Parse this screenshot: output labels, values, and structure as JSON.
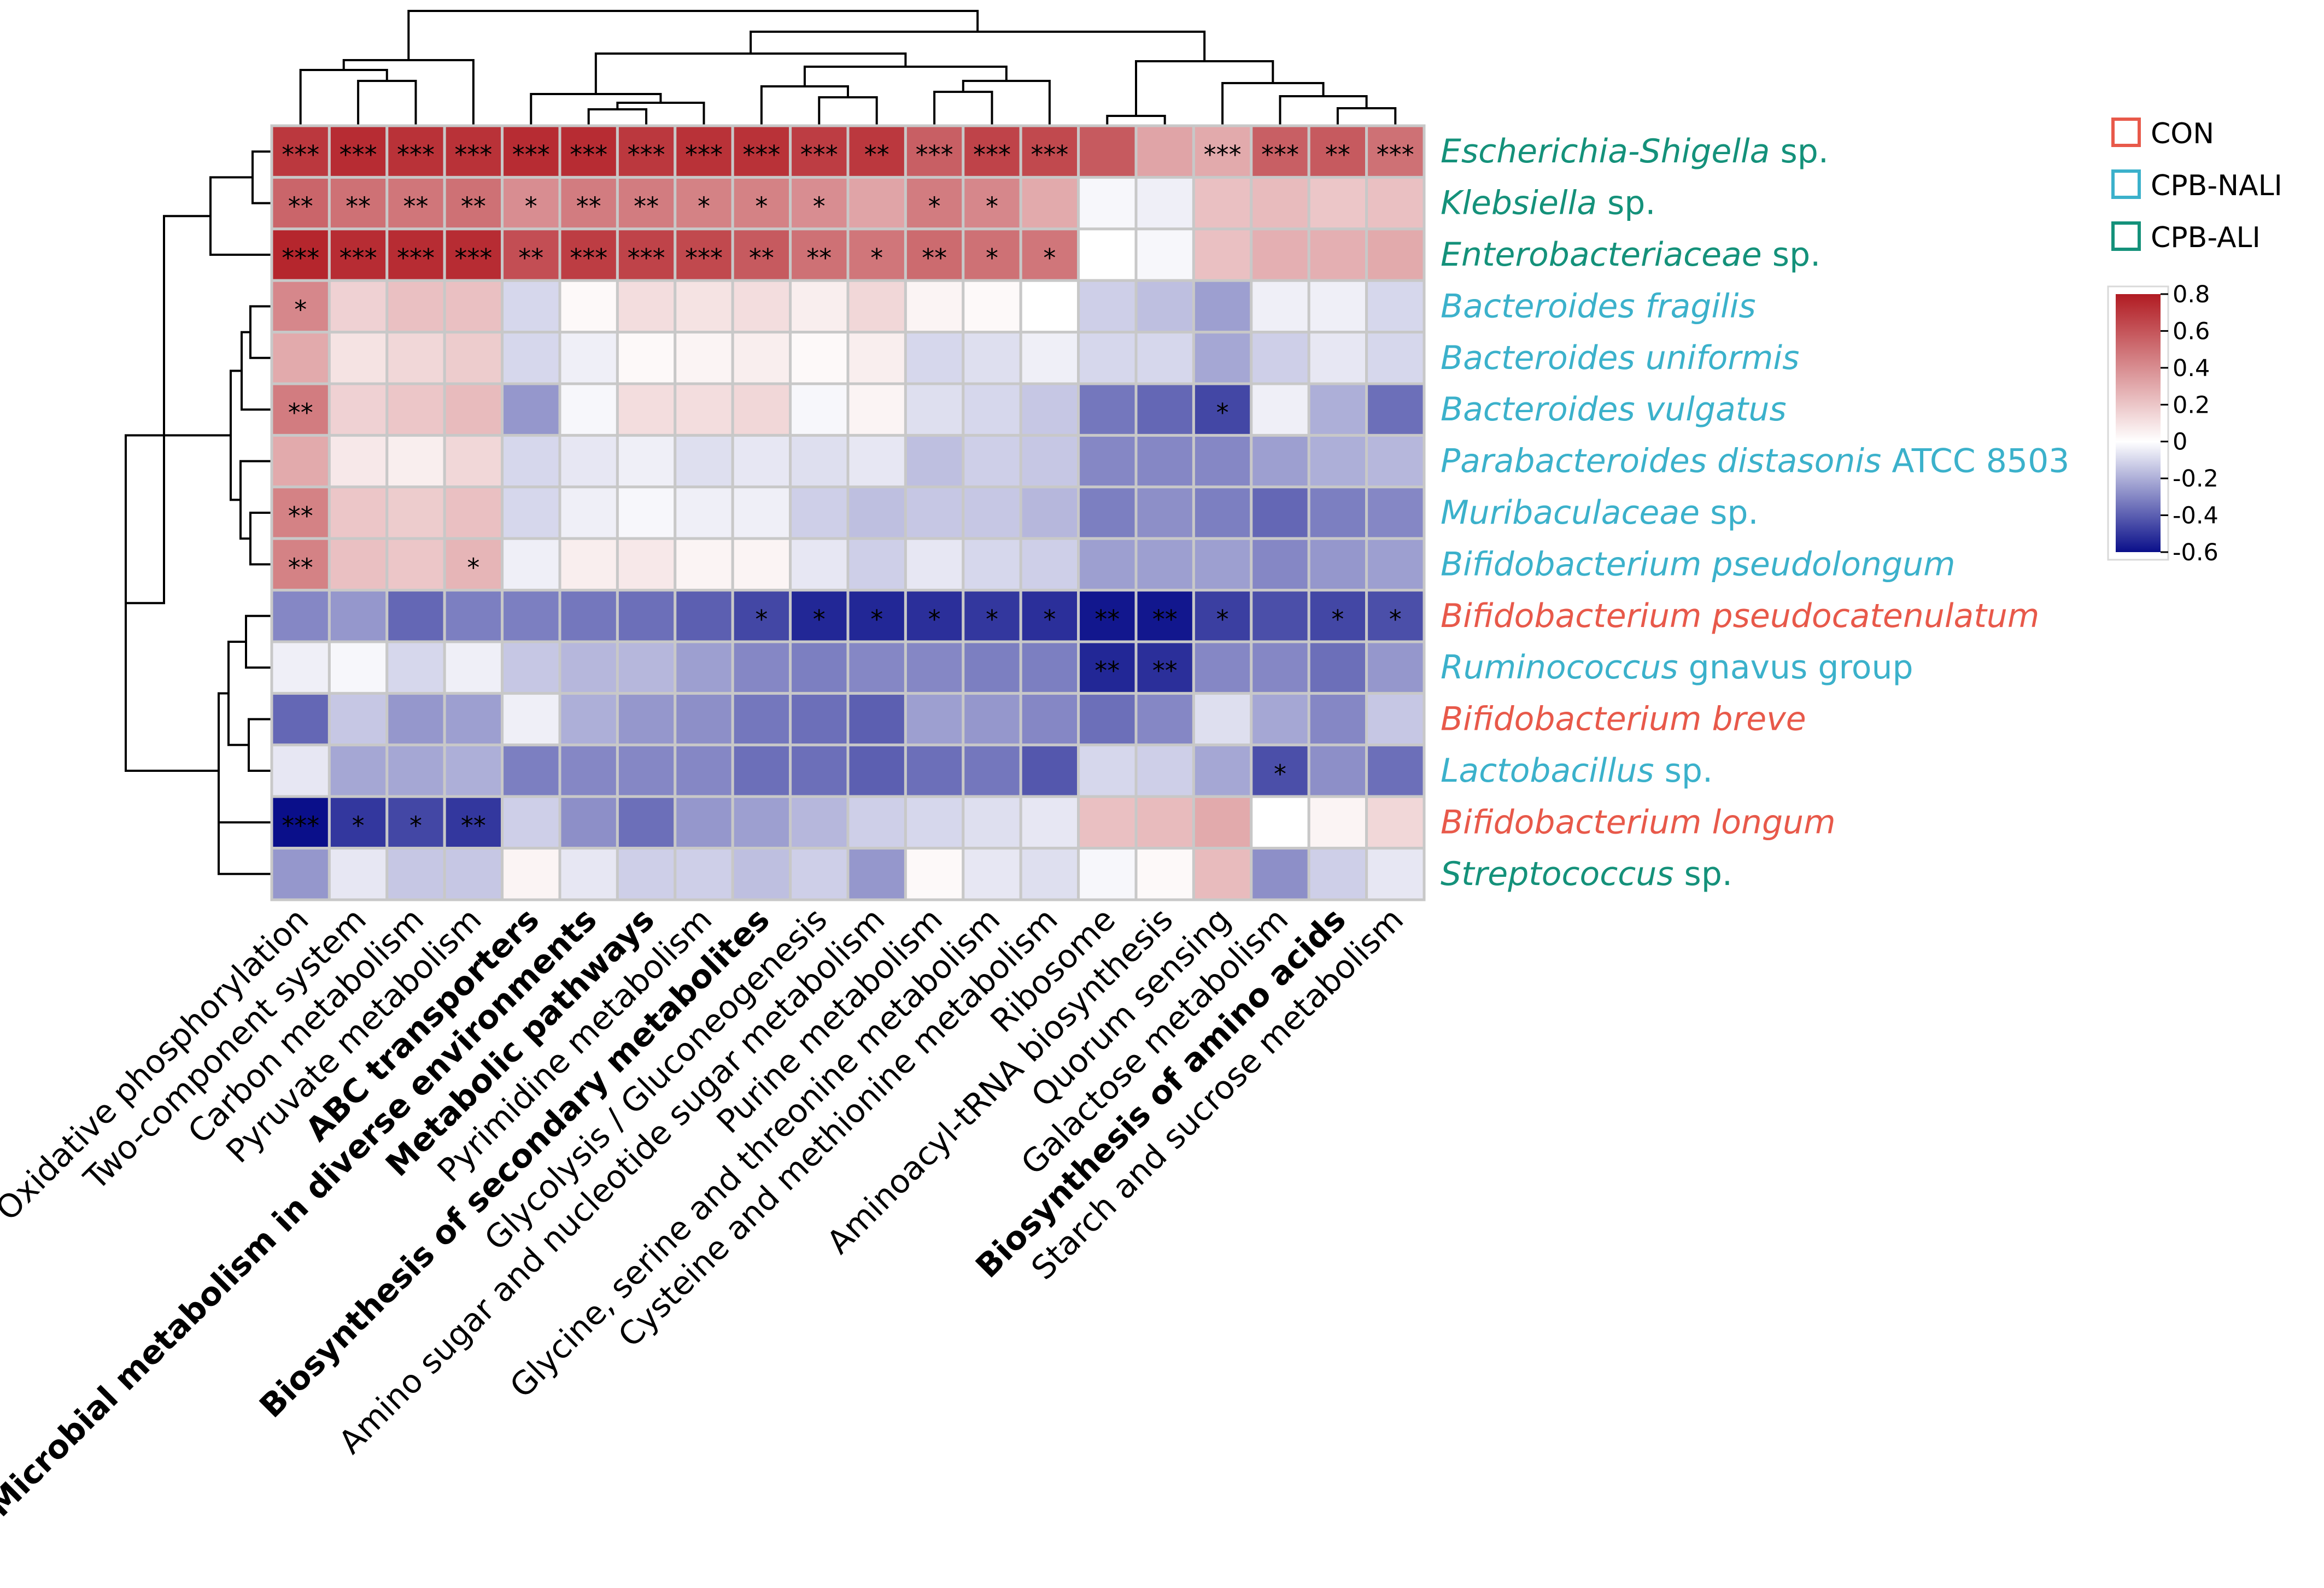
{
  "chart_data": {
    "type": "heatmap",
    "title": "",
    "rows": [
      {
        "label": "Escherichia-Shigella",
        "suffix": " sp.",
        "italic_full": false,
        "group": "CPB-ALI"
      },
      {
        "label": "Klebsiella",
        "suffix": " sp.",
        "italic_full": false,
        "group": "CPB-ALI"
      },
      {
        "label": "Enterobacteriaceae",
        "suffix": " sp.",
        "italic_full": false,
        "group": "CPB-ALI"
      },
      {
        "label": "Bacteroides fragilis",
        "suffix": "",
        "italic_full": true,
        "group": "CPB-NALI"
      },
      {
        "label": "Bacteroides uniformis",
        "suffix": "",
        "italic_full": true,
        "group": "CPB-NALI"
      },
      {
        "label": "Bacteroides vulgatus",
        "suffix": "",
        "italic_full": true,
        "group": "CPB-NALI"
      },
      {
        "label": "Parabacteroides distasonis",
        "suffix": " ATCC 8503",
        "italic_full": false,
        "group": "CPB-NALI"
      },
      {
        "label": "Muribaculaceae",
        "suffix": " sp.",
        "italic_full": false,
        "group": "CPB-NALI"
      },
      {
        "label": "Bifidobacterium pseudolongum",
        "suffix": "",
        "italic_full": true,
        "group": "CPB-NALI"
      },
      {
        "label": "Bifidobacterium pseudocatenulatum",
        "suffix": "",
        "italic_full": true,
        "group": "CON"
      },
      {
        "label": "Ruminococcus",
        "suffix": " gnavus group",
        "italic_full": false,
        "group": "CPB-NALI"
      },
      {
        "label": "Bifidobacterium breve",
        "suffix": "",
        "italic_full": true,
        "group": "CON"
      },
      {
        "label": "Lactobacillus",
        "suffix": " sp.",
        "italic_full": false,
        "group": "CPB-NALI"
      },
      {
        "label": "Bifidobacterium longum",
        "suffix": "",
        "italic_full": true,
        "group": "CON"
      },
      {
        "label": "Streptococcus",
        "suffix": " sp.",
        "italic_full": false,
        "group": "CPB-ALI"
      }
    ],
    "columns": [
      {
        "label": "Oxidative phosphorylation",
        "bold": false
      },
      {
        "label": "Two-component system",
        "bold": false
      },
      {
        "label": "Carbon metabolism",
        "bold": false
      },
      {
        "label": "Pyruvate metabolism",
        "bold": false
      },
      {
        "label": "ABC transporters",
        "bold": true
      },
      {
        "label": "Microbial metabolism in diverse environments",
        "bold": true
      },
      {
        "label": "Metabolic pathways",
        "bold": true
      },
      {
        "label": "Pyrimidine metabolism",
        "bold": false
      },
      {
        "label": "Biosynthesis of secondary metabolites",
        "bold": true
      },
      {
        "label": "Glycolysis / Gluconeogenesis",
        "bold": false
      },
      {
        "label": "Amino sugar and nucleotide sugar metabolism",
        "bold": false
      },
      {
        "label": "Purine metabolism",
        "bold": false
      },
      {
        "label": "Glycine, serine and threonine metabolism",
        "bold": false
      },
      {
        "label": "Cysteine and methionine metabolism",
        "bold": false
      },
      {
        "label": "Ribosome",
        "bold": false
      },
      {
        "label": "Aminoacyl-tRNA biosynthesis",
        "bold": false
      },
      {
        "label": "Quorum sensing",
        "bold": false
      },
      {
        "label": "Galactose metabolism",
        "bold": false
      },
      {
        "label": "Biosynthesis of amino acids",
        "bold": true
      },
      {
        "label": "Starch and sucrose metabolism",
        "bold": false
      }
    ],
    "values": [
      [
        0.7,
        0.74,
        0.72,
        0.72,
        0.74,
        0.74,
        0.7,
        0.72,
        0.72,
        0.68,
        0.7,
        0.56,
        0.66,
        0.64,
        0.58,
        0.32,
        0.3,
        0.56,
        0.58,
        0.5
      ],
      [
        0.54,
        0.5,
        0.48,
        0.5,
        0.4,
        0.46,
        0.46,
        0.44,
        0.44,
        0.4,
        0.32,
        0.46,
        0.42,
        0.3,
        -0.02,
        -0.04,
        0.22,
        0.24,
        0.2,
        0.22
      ],
      [
        0.76,
        0.74,
        0.74,
        0.74,
        0.62,
        0.68,
        0.66,
        0.64,
        0.58,
        0.5,
        0.48,
        0.52,
        0.5,
        0.48,
        0.0,
        -0.02,
        0.22,
        0.28,
        0.28,
        0.3
      ],
      [
        0.42,
        0.16,
        0.22,
        0.22,
        -0.1,
        0.02,
        0.12,
        0.1,
        0.12,
        0.06,
        0.14,
        0.04,
        0.02,
        0.0,
        -0.12,
        -0.16,
        -0.24,
        -0.04,
        -0.04,
        -0.1
      ],
      [
        0.3,
        0.1,
        0.14,
        0.18,
        -0.1,
        -0.04,
        0.02,
        0.04,
        0.06,
        0.02,
        0.06,
        -0.1,
        -0.08,
        -0.04,
        -0.1,
        -0.1,
        -0.22,
        -0.12,
        -0.06,
        -0.1
      ],
      [
        0.46,
        0.16,
        0.2,
        0.24,
        -0.26,
        -0.02,
        0.12,
        0.12,
        0.14,
        -0.02,
        0.04,
        -0.08,
        -0.1,
        -0.14,
        -0.34,
        -0.38,
        -0.46,
        -0.04,
        -0.2,
        -0.36
      ],
      [
        0.3,
        0.08,
        0.06,
        0.14,
        -0.1,
        -0.06,
        -0.04,
        -0.08,
        -0.06,
        -0.08,
        -0.06,
        -0.16,
        -0.12,
        -0.14,
        -0.3,
        -0.3,
        -0.3,
        -0.24,
        -0.2,
        -0.18
      ],
      [
        0.44,
        0.2,
        0.18,
        0.22,
        -0.1,
        -0.04,
        -0.02,
        -0.04,
        -0.04,
        -0.12,
        -0.16,
        -0.14,
        -0.14,
        -0.18,
        -0.32,
        -0.28,
        -0.32,
        -0.38,
        -0.32,
        -0.3
      ],
      [
        0.44,
        0.22,
        0.2,
        0.26,
        -0.04,
        0.06,
        0.08,
        0.04,
        0.04,
        -0.06,
        -0.12,
        -0.06,
        -0.1,
        -0.12,
        -0.24,
        -0.24,
        -0.24,
        -0.3,
        -0.26,
        -0.24
      ],
      [
        -0.3,
        -0.26,
        -0.38,
        -0.32,
        -0.32,
        -0.34,
        -0.36,
        -0.4,
        -0.46,
        -0.54,
        -0.54,
        -0.52,
        -0.5,
        -0.52,
        -0.58,
        -0.58,
        -0.48,
        -0.44,
        -0.46,
        -0.44
      ],
      [
        -0.04,
        -0.02,
        -0.1,
        -0.04,
        -0.14,
        -0.18,
        -0.18,
        -0.24,
        -0.3,
        -0.32,
        -0.3,
        -0.3,
        -0.32,
        -0.32,
        -0.54,
        -0.52,
        -0.3,
        -0.3,
        -0.36,
        -0.26
      ],
      [
        -0.38,
        -0.14,
        -0.26,
        -0.24,
        -0.04,
        -0.2,
        -0.26,
        -0.28,
        -0.34,
        -0.36,
        -0.4,
        -0.24,
        -0.26,
        -0.3,
        -0.36,
        -0.3,
        -0.08,
        -0.22,
        -0.3,
        -0.14
      ],
      [
        -0.06,
        -0.22,
        -0.22,
        -0.2,
        -0.32,
        -0.3,
        -0.3,
        -0.3,
        -0.36,
        -0.36,
        -0.4,
        -0.36,
        -0.34,
        -0.42,
        -0.1,
        -0.12,
        -0.22,
        -0.44,
        -0.28,
        -0.36
      ],
      [
        -0.6,
        -0.5,
        -0.46,
        -0.5,
        -0.12,
        -0.28,
        -0.36,
        -0.26,
        -0.24,
        -0.18,
        -0.12,
        -0.1,
        -0.08,
        -0.06,
        0.22,
        0.24,
        0.3,
        0.0,
        0.04,
        0.14
      ],
      [
        -0.26,
        -0.06,
        -0.14,
        -0.14,
        0.04,
        -0.06,
        -0.12,
        -0.12,
        -0.16,
        -0.12,
        -0.26,
        0.02,
        -0.06,
        -0.08,
        -0.02,
        0.02,
        0.24,
        -0.28,
        -0.12,
        -0.06
      ]
    ],
    "significance": [
      [
        "***",
        "***",
        "***",
        "***",
        "***",
        "***",
        "***",
        "***",
        "***",
        "***",
        "**",
        "***",
        "***",
        "***",
        "",
        "",
        "***",
        "***",
        "**",
        "***"
      ],
      [
        "**",
        "**",
        "**",
        "**",
        "*",
        "**",
        "**",
        "*",
        "*",
        "*",
        "",
        "*",
        "*",
        "",
        "",
        "",
        "",
        "",
        "",
        ""
      ],
      [
        "***",
        "***",
        "***",
        "***",
        "**",
        "***",
        "***",
        "***",
        "**",
        "**",
        "*",
        "**",
        "*",
        "*",
        "",
        "",
        "",
        "",
        "",
        ""
      ],
      [
        "*",
        "",
        "",
        "",
        "",
        "",
        "",
        "",
        "",
        "",
        "",
        "",
        "",
        "",
        "",
        "",
        "",
        "",
        "",
        ""
      ],
      [
        "",
        "",
        "",
        "",
        "",
        "",
        "",
        "",
        "",
        "",
        "",
        "",
        "",
        "",
        "",
        "",
        "",
        "",
        "",
        ""
      ],
      [
        "**",
        "",
        "",
        "",
        "",
        "",
        "",
        "",
        "",
        "",
        "",
        "",
        "",
        "",
        "",
        "",
        "*",
        "",
        "",
        ""
      ],
      [
        "",
        "",
        "",
        "",
        "",
        "",
        "",
        "",
        "",
        "",
        "",
        "",
        "",
        "",
        "",
        "",
        "",
        "",
        "",
        ""
      ],
      [
        "**",
        "",
        "",
        "",
        "",
        "",
        "",
        "",
        "",
        "",
        "",
        "",
        "",
        "",
        "",
        "",
        "",
        "",
        "",
        ""
      ],
      [
        "**",
        "",
        "",
        "*",
        "",
        "",
        "",
        "",
        "",
        "",
        "",
        "",
        "",
        "",
        "",
        "",
        "",
        "",
        "",
        ""
      ],
      [
        "",
        "",
        "",
        "",
        "",
        "",
        "",
        "",
        "*",
        "*",
        "*",
        "*",
        "*",
        "*",
        "**",
        "**",
        "*",
        "",
        "*",
        "*"
      ],
      [
        "",
        "",
        "",
        "",
        "",
        "",
        "",
        "",
        "",
        "",
        "",
        "",
        "",
        "",
        "**",
        "**",
        "",
        "",
        "",
        ""
      ],
      [
        "",
        "",
        "",
        "",
        "",
        "",
        "",
        "",
        "",
        "",
        "",
        "",
        "",
        "",
        "",
        "",
        "",
        "",
        "",
        ""
      ],
      [
        "",
        "",
        "",
        "",
        "",
        "",
        "",
        "",
        "",
        "",
        "",
        "",
        "",
        "",
        "",
        "",
        "",
        "*",
        "",
        ""
      ],
      [
        "***",
        "*",
        "*",
        "**",
        "",
        "",
        "",
        "",
        "",
        "",
        "",
        "",
        "",
        "",
        "",
        "",
        "",
        "",
        "",
        ""
      ],
      [
        "",
        "",
        "",
        "",
        "",
        "",
        "",
        "",
        "",
        "",
        "",
        "",
        "",
        "",
        "",
        "",
        "",
        "",
        "",
        ""
      ]
    ],
    "color_scale": {
      "min": -0.6,
      "max": 0.8,
      "low": "#0a0f8a",
      "mid": "#ffffff",
      "high": "#b11b22"
    },
    "colorbar_ticks": [
      "0.8",
      "0.6",
      "0.4",
      "0.2",
      "0",
      "-0.2",
      "-0.4",
      "-0.6"
    ],
    "legend": {
      "position": "top-right",
      "items": [
        {
          "label": "CON",
          "color": "#e8594a"
        },
        {
          "label": "CPB-NALI",
          "color": "#3bb1cb"
        },
        {
          "label": "CPB-ALI",
          "color": "#14917a"
        }
      ]
    },
    "dendrograms": [
      "row",
      "column"
    ]
  }
}
